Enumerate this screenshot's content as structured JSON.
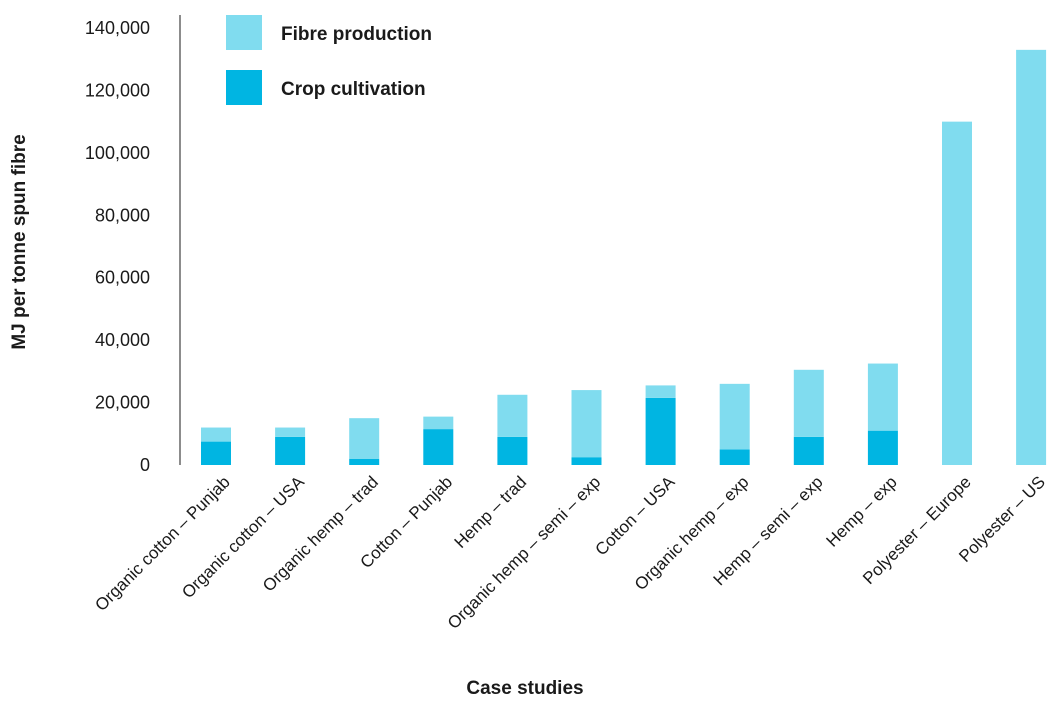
{
  "chart_data": {
    "type": "bar",
    "stacked": true,
    "title": "",
    "xlabel": "Case studies",
    "ylabel": "MJ per tonne spun fibre",
    "ylim": [
      0,
      140000
    ],
    "yticks": [
      0,
      20000,
      40000,
      60000,
      80000,
      100000,
      120000,
      140000
    ],
    "ytick_labels": [
      "0",
      "20,000",
      "40,000",
      "60,000",
      "80,000",
      "100,000",
      "120,000",
      "140,000"
    ],
    "grid": false,
    "legend_position": "top-left",
    "categories": [
      "Organic cotton – Punjab",
      "Organic cotton – USA",
      "Organic hemp – trad",
      "Cotton – Punjab",
      "Hemp – trad",
      "Organic hemp – semi – exp",
      "Cotton – USA",
      "Organic hemp – exp",
      "Hemp – semi – exp",
      "Hemp – exp",
      "Polyester – Europe",
      "Polyester – US"
    ],
    "series": [
      {
        "name": "Crop cultivation",
        "color": "#00b5e2",
        "values": [
          7500,
          9000,
          2000,
          11500,
          9000,
          2500,
          21500,
          5000,
          9000,
          11000,
          0,
          0
        ]
      },
      {
        "name": "Fibre production",
        "color": "#80dcef",
        "values": [
          4500,
          3000,
          13000,
          4000,
          13500,
          21500,
          4000,
          21000,
          21500,
          21500,
          110000,
          133000
        ]
      }
    ],
    "legend": [
      {
        "label": "Fibre production",
        "color": "#80dcef"
      },
      {
        "label": "Crop cultivation",
        "color": "#00b5e2"
      }
    ]
  }
}
